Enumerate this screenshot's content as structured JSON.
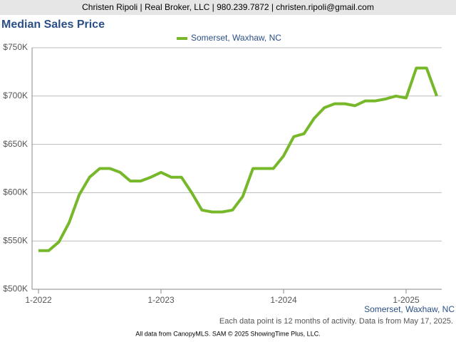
{
  "header": "Christen Ripoli | Real Broker, LLC | 980.239.7872 | christen.ripoli@gmail.com",
  "chart_data": {
    "type": "line",
    "title": "Median Sales Price",
    "categories": [
      "1-2022",
      null,
      null,
      null,
      null,
      null,
      null,
      null,
      null,
      null,
      null,
      null,
      "1-2023",
      null,
      null,
      null,
      null,
      null,
      null,
      null,
      null,
      null,
      null,
      null,
      "1-2024",
      null,
      null,
      null,
      null,
      null,
      null,
      null,
      null,
      null,
      null,
      null,
      "1-2025",
      null,
      null,
      null
    ],
    "series": [
      {
        "name": "Somerset, Waxhaw, NC",
        "color": "#77b82a",
        "values": [
          540000,
          540000,
          549000,
          569000,
          598000,
          616000,
          625000,
          625000,
          621000,
          612000,
          612000,
          616000,
          621000,
          616000,
          616000,
          600000,
          582000,
          580000,
          580000,
          582000,
          596000,
          625000,
          625000,
          625000,
          638000,
          658000,
          661000,
          677000,
          688000,
          692000,
          692000,
          690000,
          695000,
          695000,
          697000,
          700000,
          698000,
          729000,
          729000,
          700000
        ]
      }
    ],
    "ylim": [
      500000,
      750000
    ],
    "yticks": [
      {
        "value": 500000,
        "label": "$500K"
      },
      {
        "value": 550000,
        "label": "$550K"
      },
      {
        "value": 600000,
        "label": "$600K"
      },
      {
        "value": 650000,
        "label": "$650K"
      },
      {
        "value": 700000,
        "label": "$700K"
      },
      {
        "value": 750000,
        "label": "$750K"
      }
    ],
    "grid": true,
    "legend": "top",
    "footnote": "Each data point is 12 months of activity. Data is from May 17, 2025.",
    "source": "All data from CanopyMLS. SAM © 2025 ShowingTime Plus, LLC."
  }
}
